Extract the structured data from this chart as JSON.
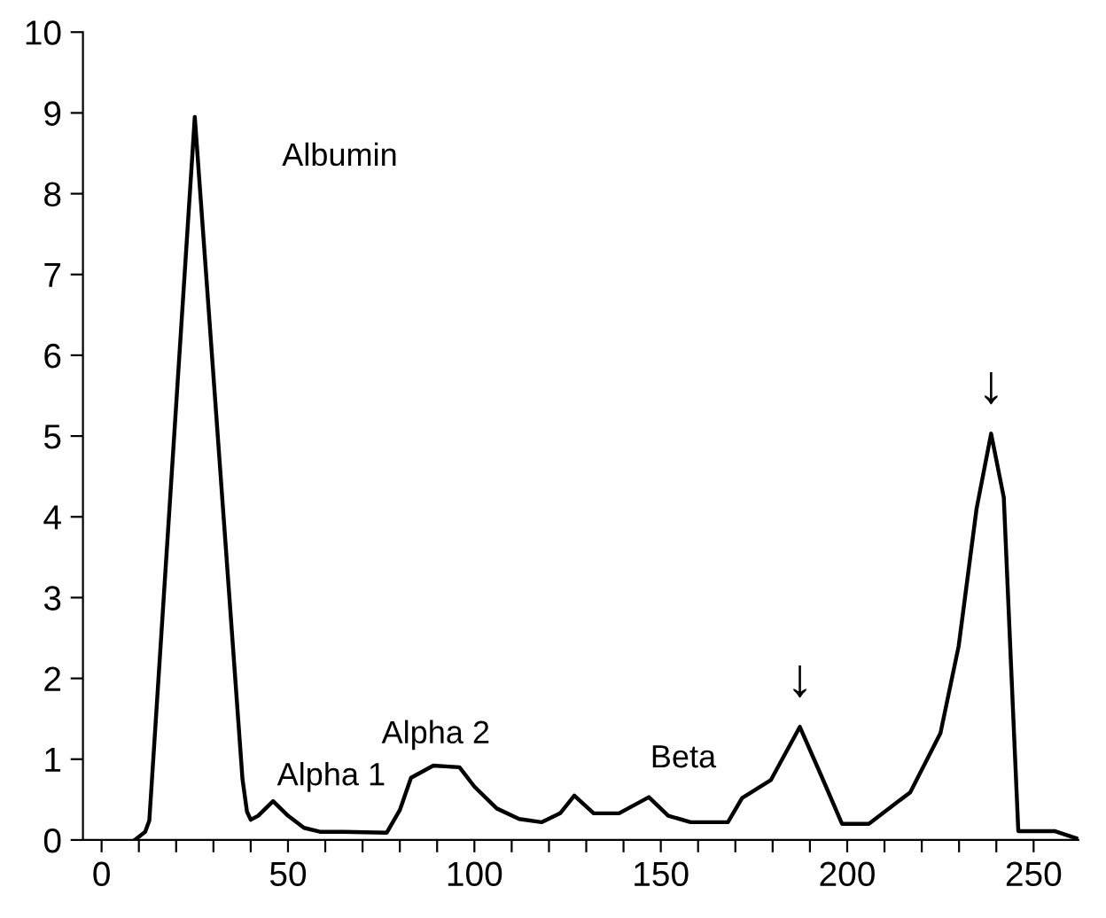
{
  "chart_data": {
    "type": "line",
    "x": [
      8.9,
      11.7,
      12.8,
      25,
      37.8,
      39,
      40,
      42,
      46,
      50,
      54.3,
      58.8,
      65,
      76.5,
      80,
      83,
      89,
      96,
      100,
      106,
      112,
      118,
      123,
      126.8,
      132,
      138.8,
      146.8,
      152,
      158,
      168,
      171.8,
      179.5,
      187.3,
      193,
      198.6,
      205.8,
      216.9,
      225,
      229.9,
      234.7,
      238.6,
      242,
      244.4,
      245.9,
      255.6,
      261.5
    ],
    "series": [
      {
        "color": "#000000",
        "values": [
          0,
          0.1,
          0.24,
          8.95,
          0.75,
          0.35,
          0.25,
          0.3,
          0.48,
          0.3,
          0.15,
          0.1,
          0.1,
          0.09,
          0.37,
          0.77,
          0.92,
          0.9,
          0.66,
          0.39,
          0.26,
          0.22,
          0.33,
          0.55,
          0.33,
          0.33,
          0.53,
          0.3,
          0.22,
          0.22,
          0.52,
          0.74,
          1.4,
          0.8,
          0.2,
          0.2,
          0.59,
          1.32,
          2.4,
          4.1,
          5.03,
          4.24,
          1.68,
          0.11,
          0.11,
          0.02
        ]
      }
    ],
    "xlim": [
      -5,
      262
    ],
    "ylim": [
      0,
      10
    ],
    "xticks": [
      0,
      {
        "value": 10,
        "label": null
      },
      {
        "value": 20,
        "label": null
      },
      {
        "value": 30,
        "label": null
      },
      {
        "value": 40,
        "label": null
      },
      50,
      {
        "value": 60,
        "label": null
      },
      {
        "value": 70,
        "label": null
      },
      {
        "value": 80,
        "label": null
      },
      {
        "value": 90,
        "label": null
      },
      100,
      {
        "value": 110,
        "label": null
      },
      {
        "value": 120,
        "label": null
      },
      {
        "value": 130,
        "label": null
      },
      {
        "value": 140,
        "label": null
      },
      150,
      {
        "value": 160,
        "label": null
      },
      {
        "value": 170,
        "label": null
      },
      {
        "value": 180,
        "label": null
      },
      {
        "value": 190,
        "label": null
      },
      200,
      {
        "value": 210,
        "label": null
      },
      {
        "value": 220,
        "label": null
      },
      {
        "value": 230,
        "label": null
      },
      {
        "value": 240,
        "label": null
      },
      250
    ],
    "yticks": [
      0,
      1,
      2,
      3,
      4,
      5,
      6,
      7,
      8,
      9,
      10
    ],
    "annotations": [
      "Albumin",
      "Alpha 1",
      "Alpha 2",
      "Beta",
      {
        "text": "↓",
        "x": 187.3,
        "y": 1.4
      },
      {
        "text": "↓",
        "x": 238.6,
        "y": 5.03
      }
    ],
    "grid": false,
    "marker": "none",
    "line_style": "solid"
  }
}
